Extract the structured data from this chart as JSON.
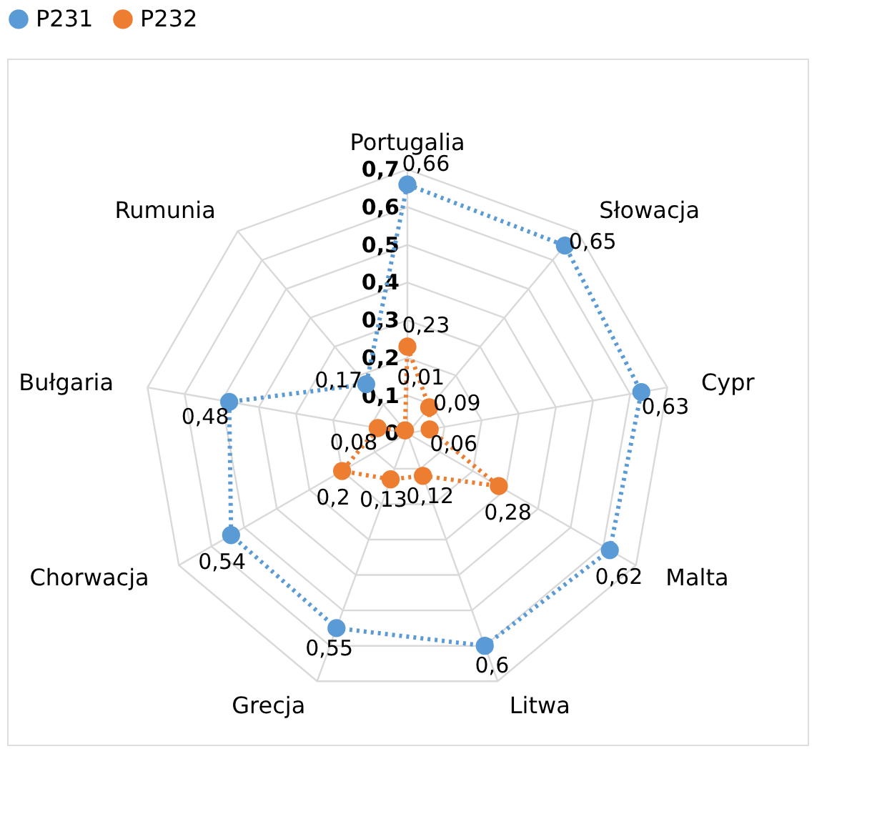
{
  "chart_data": {
    "type": "radar",
    "categories": [
      "Portugalia",
      "Słowacja",
      "Cypr",
      "Malta",
      "Litwa",
      "Grecja",
      "Chorwacja",
      "Bułgaria",
      "Rumunia"
    ],
    "series": [
      {
        "name": "P231",
        "color": "#5b9bd5",
        "values": [
          0.66,
          0.65,
          0.63,
          0.62,
          0.6,
          0.55,
          0.54,
          0.48,
          0.17
        ],
        "value_labels": [
          "0,66",
          "0,65",
          "0,63",
          "0,62",
          "0,6",
          "0,55",
          "0,54",
          "0,48",
          "0,17"
        ]
      },
      {
        "name": "P232",
        "color": "#ed7d31",
        "values": [
          0.23,
          0.09,
          0.06,
          0.28,
          0.12,
          0.13,
          0.2,
          0.08,
          0.01
        ],
        "value_labels": [
          "0,23",
          "0,09",
          "0,06",
          "0,28",
          "0,12",
          "0,13",
          "0,2",
          "0,08",
          "0,01"
        ]
      }
    ],
    "ylim": [
      0,
      0.7
    ],
    "yticks": [
      0,
      {
        "value": 0.1,
        "label": "0,1"
      },
      {
        "value": 0.2,
        "label": "0,2"
      },
      {
        "value": 0.3,
        "label": "0,3"
      },
      {
        "value": 0.4,
        "label": "0,4"
      },
      {
        "value": 0.5,
        "label": "0,5"
      },
      {
        "value": 0.6,
        "label": "0,6"
      },
      {
        "value": 0.7,
        "label": "0,7"
      }
    ],
    "grid": true,
    "legend": "top",
    "marker": "circle",
    "line_style": "dotted"
  }
}
